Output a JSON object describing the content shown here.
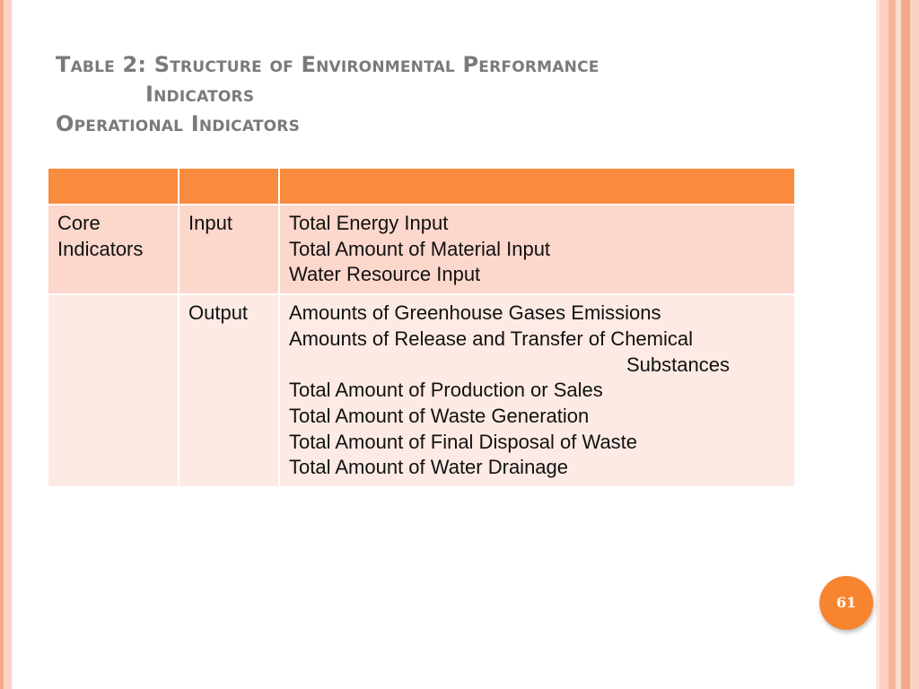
{
  "title": {
    "line1": "Table 2: Structure of Environmental Performance",
    "line2": "Indicators",
    "line3": "Operational Indicators"
  },
  "table": {
    "header": [
      "",
      "",
      ""
    ],
    "rows": [
      {
        "category": "Core Indicators",
        "type": "Input",
        "indicators": [
          "Total Energy Input",
          "Total Amount of Material Input",
          "Water Resource Input"
        ]
      },
      {
        "category": "",
        "type": "Output",
        "indicators": [
          "Amounts of Greenhouse Gases Emissions",
          "Amounts of Release and Transfer of Chemical",
          "Substances",
          "Total Amount of Production or Sales",
          "Total Amount of Waste Generation",
          "Total Amount of Final Disposal of Waste",
          "Total Amount of Water Drainage"
        ]
      }
    ]
  },
  "page_number": "61",
  "colors": {
    "accent": "#f98b3e",
    "row_dark": "#fcd7cb",
    "row_light": "#fdeae4",
    "title_gray": "#7a7a7a"
  }
}
